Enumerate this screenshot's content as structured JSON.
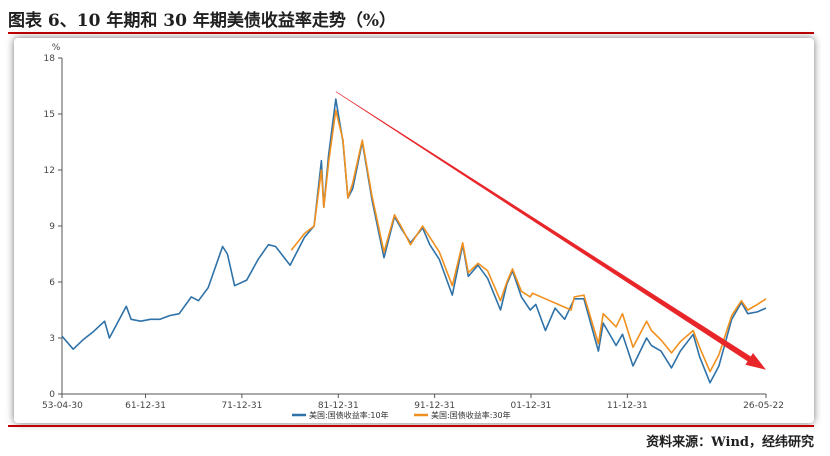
{
  "title": "图表 6、10 年期和 30 年期美债收益率走势（%）",
  "source": "资料来源：Wind，经纬研究",
  "colors": {
    "rule": "#c00000",
    "series10": "#2f72a8",
    "series30": "#f0901e",
    "arrow": "#e8262a"
  },
  "chart_data": {
    "type": "line",
    "ylabel": "%",
    "ylim": [
      0,
      18
    ],
    "yticks": [
      "0",
      "3",
      "6",
      "9",
      "12",
      "15",
      "18"
    ],
    "xlim": [
      "1953-04-30",
      "2026-05-22"
    ],
    "xticks": [
      "53-04-30",
      "61-12-31",
      "71-12-31",
      "81-12-31",
      "91-12-31",
      "01-12-31",
      "11-12-31",
      "26-05-22"
    ],
    "legend": {
      "placement": "bottom"
    },
    "grid": false,
    "series": [
      {
        "name": "美国:国债收益率:10年",
        "color": "#2f72a8",
        "x": [
          "1953-04-30",
          "1954-06-30",
          "1955-06-30",
          "1956-06-30",
          "1957-09-30",
          "1958-03-31",
          "1959-12-31",
          "1960-06-30",
          "1961-06-30",
          "1962-06-30",
          "1963-06-30",
          "1964-06-30",
          "1965-06-30",
          "1966-09-30",
          "1967-06-30",
          "1968-06-30",
          "1969-12-31",
          "1970-06-30",
          "1971-03-31",
          "1972-06-30",
          "1973-08-31",
          "1974-09-30",
          "1975-06-30",
          "1976-12-31",
          "1977-06-30",
          "1978-06-30",
          "1979-06-30",
          "1980-03-31",
          "1980-06-30",
          "1980-12-31",
          "1981-09-30",
          "1982-06-30",
          "1982-12-31",
          "1983-06-30",
          "1984-06-30",
          "1985-06-30",
          "1986-09-30",
          "1987-10-31",
          "1988-06-30",
          "1989-06-30",
          "1990-09-30",
          "1991-06-30",
          "1992-06-30",
          "1993-10-31",
          "1994-11-30",
          "1995-06-30",
          "1996-06-30",
          "1997-06-30",
          "1998-10-31",
          "1999-06-30",
          "2000-01-31",
          "2000-12-31",
          "2001-11-30",
          "2002-06-30",
          "2003-06-30",
          "2004-06-30",
          "2005-06-30",
          "2006-06-30",
          "2007-06-30",
          "2008-12-31",
          "2009-06-30",
          "2010-10-31",
          "2011-06-30",
          "2012-07-31",
          "2013-12-31",
          "2014-06-30",
          "2015-06-30",
          "2016-07-31",
          "2017-06-30",
          "2018-10-31",
          "2019-06-30",
          "2020-07-31",
          "2021-06-30",
          "2022-10-31",
          "2023-10-31",
          "2024-06-30",
          "2025-06-30",
          "2026-05-22"
        ],
        "values": [
          3.1,
          2.4,
          2.9,
          3.3,
          3.9,
          3.0,
          4.7,
          4.0,
          3.9,
          4.0,
          4.0,
          4.2,
          4.3,
          5.2,
          5.0,
          5.7,
          7.9,
          7.5,
          5.8,
          6.1,
          7.2,
          8.0,
          7.9,
          6.9,
          7.4,
          8.4,
          9.0,
          12.5,
          10.0,
          12.8,
          15.8,
          13.5,
          10.5,
          11.0,
          13.5,
          10.4,
          7.3,
          9.5,
          8.9,
          8.1,
          8.9,
          8.0,
          7.2,
          5.3,
          8.0,
          6.3,
          6.9,
          6.2,
          4.5,
          5.9,
          6.6,
          5.2,
          4.5,
          4.8,
          3.4,
          4.6,
          4.0,
          5.1,
          5.1,
          2.3,
          3.8,
          2.6,
          3.2,
          1.5,
          3.0,
          2.6,
          2.3,
          1.4,
          2.3,
          3.2,
          2.0,
          0.6,
          1.5,
          4.0,
          4.9,
          4.3,
          4.4,
          4.6
        ]
      },
      {
        "name": "美国:国债收益率:30年",
        "color": "#f0901e",
        "x": [
          "1977-02-15",
          "1978-06-30",
          "1979-06-30",
          "1980-03-31",
          "1980-06-30",
          "1980-12-31",
          "1981-09-30",
          "1982-06-30",
          "1982-12-31",
          "1983-06-30",
          "1984-06-30",
          "1985-06-30",
          "1986-09-30",
          "1987-10-31",
          "1988-06-30",
          "1989-06-30",
          "1990-09-30",
          "1991-06-30",
          "1992-06-30",
          "1993-10-31",
          "1994-11-30",
          "1995-06-30",
          "1996-06-30",
          "1997-06-30",
          "1998-10-31",
          "1999-06-30",
          "2000-01-31",
          "2000-12-31",
          "2001-11-30",
          "2002-02-28",
          "2006-02-28",
          "2006-06-30",
          "2007-06-30",
          "2008-12-31",
          "2009-06-30",
          "2010-10-31",
          "2011-06-30",
          "2012-07-31",
          "2013-12-31",
          "2014-06-30",
          "2015-06-30",
          "2016-07-31",
          "2017-06-30",
          "2018-10-31",
          "2019-06-30",
          "2020-07-31",
          "2021-06-30",
          "2022-10-31",
          "2023-10-31",
          "2024-06-30",
          "2025-06-30",
          "2026-05-22"
        ],
        "values": [
          7.7,
          8.6,
          9.0,
          12.0,
          10.0,
          12.4,
          15.2,
          13.6,
          10.5,
          11.3,
          13.6,
          10.6,
          7.6,
          9.6,
          9.0,
          8.0,
          9.0,
          8.4,
          7.6,
          5.8,
          8.1,
          6.5,
          7.0,
          6.6,
          5.0,
          6.0,
          6.7,
          5.5,
          5.2,
          5.4,
          4.5,
          5.2,
          5.3,
          2.7,
          4.3,
          3.6,
          4.3,
          2.5,
          3.9,
          3.4,
          2.9,
          2.2,
          2.8,
          3.4,
          2.5,
          1.2,
          2.1,
          4.2,
          5.0,
          4.5,
          4.8,
          5.1
        ]
      }
    ],
    "annotations": [
      {
        "type": "arrow",
        "from": {
          "x": "1981-09-30",
          "y": 16.2
        },
        "to": {
          "x": "2026-05-22",
          "y": 1.3
        }
      }
    ]
  }
}
